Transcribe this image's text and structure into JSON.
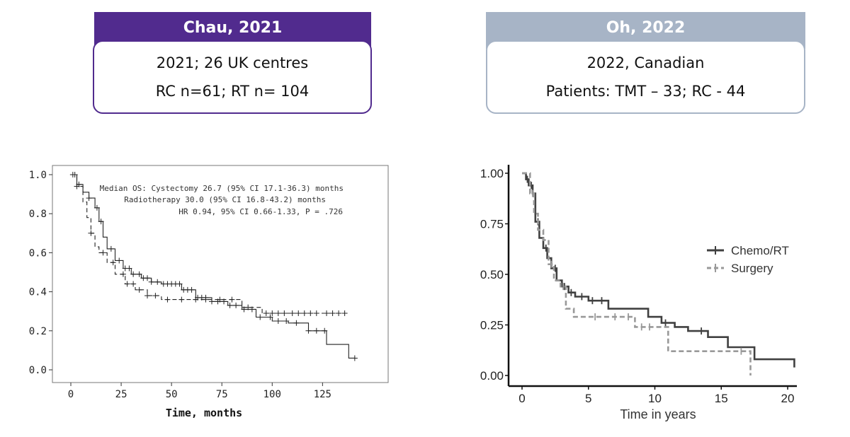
{
  "studies": [
    {
      "title": "Chau, 2021",
      "lines": [
        "2021; 26 UK centres",
        "RC n=61; RT n= 104"
      ],
      "header_color": "#512b8e"
    },
    {
      "title": "Oh, 2022",
      "lines": [
        "2022, Canadian",
        "Patients: TMT – 33; RC - 44"
      ],
      "header_color": "#a7b4c6"
    }
  ],
  "chart_data": [
    {
      "type": "line",
      "subtype": "kaplan-meier",
      "title": "",
      "xlabel": "Time, months",
      "ylabel": "",
      "xlim": [
        0,
        145
      ],
      "ylim": [
        0,
        1.0
      ],
      "x_ticks": [
        0,
        25,
        50,
        75,
        100,
        125
      ],
      "y_ticks": [
        "0.0",
        "0.2",
        "0.4",
        "0.6",
        "0.8",
        "1.0"
      ],
      "grid": false,
      "legend": "none",
      "annotation": [
        "Median OS: Cystectomy 26.7 (95% CI 17.1-36.3) months",
        "Radiotherapy  30.0 (95% CI 16.8-43.2) months",
        "HR 0.94, 95% CI 0.66-1.33, P = .726"
      ],
      "series": [
        {
          "style": "solid",
          "x": [
            0,
            3,
            6,
            9,
            12,
            14,
            16,
            18,
            22,
            26,
            30,
            35,
            40,
            45,
            55,
            62,
            70,
            78,
            85,
            92,
            100,
            108,
            118,
            127,
            138,
            141
          ],
          "y": [
            1.0,
            0.95,
            0.91,
            0.88,
            0.83,
            0.76,
            0.68,
            0.62,
            0.56,
            0.52,
            0.49,
            0.47,
            0.45,
            0.44,
            0.41,
            0.37,
            0.35,
            0.33,
            0.31,
            0.27,
            0.25,
            0.24,
            0.2,
            0.13,
            0.06,
            0.06
          ],
          "censor_x": [
            2,
            4,
            9,
            13,
            15,
            20,
            24,
            27,
            29,
            31,
            34,
            36,
            38,
            40,
            43,
            46,
            48,
            50,
            52,
            54,
            56,
            58,
            60,
            63,
            65,
            67,
            70,
            73,
            76,
            79,
            82,
            86,
            90,
            94,
            99,
            103,
            107,
            112,
            118,
            122,
            126,
            141
          ]
        },
        {
          "style": "dashed",
          "x": [
            0,
            3,
            6,
            8,
            10,
            12,
            14,
            18,
            22,
            27,
            32,
            38,
            45,
            55,
            65,
            72,
            85,
            95,
            100,
            110,
            120,
            137
          ],
          "y": [
            1.0,
            0.94,
            0.86,
            0.78,
            0.7,
            0.63,
            0.6,
            0.55,
            0.49,
            0.44,
            0.41,
            0.38,
            0.36,
            0.36,
            0.36,
            0.36,
            0.32,
            0.29,
            0.29,
            0.29,
            0.29,
            0.29
          ],
          "censor_x": [
            1,
            3,
            10,
            16,
            21,
            26,
            28,
            31,
            34,
            38,
            42,
            48,
            55,
            62,
            67,
            74,
            80,
            88,
            97,
            100,
            103,
            106,
            110,
            113,
            116,
            119,
            122,
            127,
            130,
            133,
            136
          ]
        }
      ]
    },
    {
      "type": "line",
      "subtype": "kaplan-meier",
      "title": "",
      "xlabel": "Time in years",
      "ylabel": "",
      "xlim": [
        -1,
        20.7
      ],
      "ylim": [
        -0.06,
        1.06
      ],
      "x_ticks": [
        0,
        5,
        10,
        15,
        20
      ],
      "y_ticks": [
        "0.00",
        "0.25",
        "0.50",
        "0.75",
        "1.00"
      ],
      "grid": false,
      "legend": "right",
      "series": [
        {
          "name": "Chemo/RT",
          "color": "#404040",
          "style": "solid",
          "x": [
            0,
            0.3,
            0.5,
            0.8,
            1.0,
            1.3,
            1.6,
            1.9,
            2.2,
            2.6,
            3.0,
            3.5,
            4.0,
            5.0,
            6.5,
            8.0,
            9.5,
            10.5,
            11.5,
            12.5,
            14.0,
            15.5,
            17.5,
            20.5
          ],
          "y": [
            1.0,
            0.97,
            0.94,
            0.9,
            0.76,
            0.68,
            0.63,
            0.58,
            0.53,
            0.47,
            0.44,
            0.41,
            0.39,
            0.37,
            0.33,
            0.33,
            0.29,
            0.26,
            0.24,
            0.22,
            0.19,
            0.14,
            0.08,
            0.04
          ],
          "censor_x": [
            0.4,
            0.7,
            1.2,
            1.8,
            2.5,
            3.2,
            3.7,
            4.5,
            5.3,
            6.0,
            10.8,
            13.5
          ]
        },
        {
          "name": "Surgery",
          "color": "#999999",
          "style": "dashed",
          "x": [
            0,
            0.6,
            0.9,
            1.2,
            1.6,
            2.0,
            2.4,
            2.9,
            3.3,
            3.9,
            5.0,
            6.5,
            8.5,
            10.0,
            11.0,
            14.0,
            17.2
          ],
          "y": [
            1.0,
            0.9,
            0.8,
            0.72,
            0.67,
            0.55,
            0.47,
            0.44,
            0.33,
            0.29,
            0.29,
            0.29,
            0.24,
            0.24,
            0.12,
            0.12,
            0.0
          ],
          "censor_x": [
            0.8,
            2.2,
            3.1,
            5.5,
            7.0,
            8.0,
            9.0,
            9.6,
            16.5
          ]
        }
      ]
    }
  ]
}
